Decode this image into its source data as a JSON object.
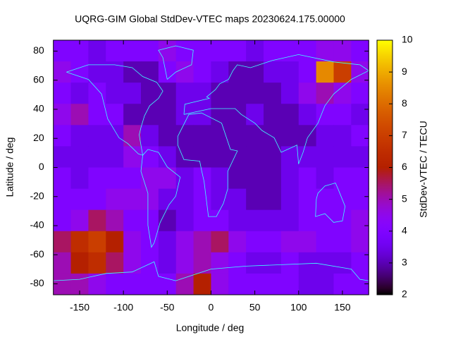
{
  "chart_data": {
    "type": "heatmap",
    "title": "UQRG-GIM Global StdDev-VTEC maps 20230624.175.00000",
    "xlabel": "Longitude / deg",
    "ylabel": "Latitude / deg",
    "colorbar_label": "StdDev-VTEC / TECU",
    "xlim": [
      -180,
      180
    ],
    "ylim": [
      -87.5,
      87.5
    ],
    "xticks": [
      -150,
      -100,
      -50,
      0,
      50,
      100,
      150
    ],
    "yticks": [
      -80,
      -60,
      -40,
      -20,
      0,
      20,
      40,
      60,
      80
    ],
    "clim": [
      2,
      10
    ],
    "cticks": [
      2,
      3,
      4,
      5,
      6,
      7,
      8,
      9,
      10
    ],
    "z": [
      [
        4,
        4,
        3.5,
        4,
        4,
        4,
        4.5,
        4,
        4,
        4,
        4,
        3.5,
        4,
        4,
        4,
        4.5,
        4.5,
        4
      ],
      [
        4.5,
        4,
        3.5,
        3.5,
        3,
        3,
        4,
        4.5,
        4,
        3.5,
        3,
        3,
        3.5,
        3.5,
        4,
        8.5,
        7,
        4.5
      ],
      [
        4,
        3.5,
        4,
        3.5,
        3.5,
        3,
        3,
        3.5,
        3.5,
        3,
        3,
        3,
        3,
        3.5,
        4.5,
        5,
        4.5,
        4
      ],
      [
        4.5,
        5,
        4,
        4,
        3,
        3,
        3,
        3.5,
        3.5,
        3,
        3,
        3.5,
        3,
        3,
        3.5,
        4,
        4,
        3.5
      ],
      [
        4,
        3.5,
        3.5,
        3.5,
        5,
        3.5,
        3,
        3,
        3,
        3,
        3,
        3,
        3,
        3,
        3,
        3.5,
        3.5,
        4
      ],
      [
        3.5,
        3.5,
        3.5,
        3.5,
        4.5,
        4,
        3.5,
        3,
        3,
        3,
        3,
        3,
        3,
        3.5,
        3.5,
        3.5,
        3.5,
        3.5
      ],
      [
        4,
        3.5,
        4,
        4,
        4,
        4.5,
        4.5,
        3.5,
        4,
        3.5,
        3,
        3,
        3,
        3.5,
        4,
        3.5,
        4,
        4
      ],
      [
        4,
        4,
        4,
        4.5,
        4.5,
        4.5,
        3.5,
        3.5,
        4,
        3.5,
        3.5,
        3,
        3,
        3.5,
        4,
        4,
        4,
        4
      ],
      [
        4,
        4.5,
        5.5,
        5,
        4,
        4,
        3,
        3.5,
        4,
        4,
        3.5,
        3.5,
        3.5,
        3.5,
        4,
        4,
        4,
        4.5
      ],
      [
        5.5,
        6.5,
        7,
        6,
        4.5,
        4,
        3.5,
        4.5,
        5,
        5.5,
        4.5,
        4,
        4,
        4.5,
        4.5,
        4,
        4,
        4.5
      ],
      [
        5,
        6,
        6.5,
        5.5,
        4.5,
        4,
        3.5,
        4.5,
        5,
        4.5,
        4,
        3.5,
        3.5,
        4,
        3.5,
        3.5,
        3.5,
        4
      ],
      [
        5,
        5,
        4.5,
        4,
        4,
        4,
        4,
        5,
        6,
        4.5,
        4,
        4,
        4,
        4,
        3.5,
        3.5,
        4,
        4
      ]
    ]
  }
}
